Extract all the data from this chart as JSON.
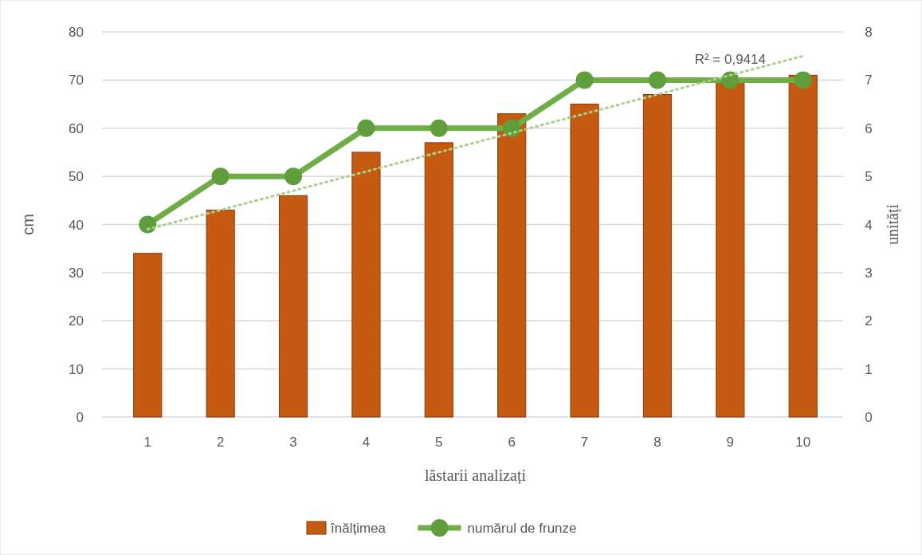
{
  "chart_data": {
    "type": "bar",
    "xlabel": "lăstarii analizați",
    "ylabel": "cm",
    "y2label": "unități",
    "categories": [
      "1",
      "2",
      "3",
      "4",
      "5",
      "6",
      "7",
      "8",
      "9",
      "10"
    ],
    "series": [
      {
        "name": "înălțimea",
        "color": "#c55a11",
        "values": [
          34,
          43,
          46,
          55,
          57,
          63,
          65,
          67,
          70,
          71
        ]
      },
      {
        "name": "numărul de frunze",
        "type": "line",
        "axis": "y2",
        "color": "#70ad47",
        "marker": "circle",
        "values": [
          4,
          5,
          5,
          6,
          6,
          6,
          7,
          7,
          7,
          7
        ]
      },
      {
        "type": "line",
        "axis": "y2",
        "color": "#a9d18e",
        "line_style": "dotted",
        "x": [
          "1",
          "10"
        ],
        "values": [
          3.9,
          7.5
        ]
      }
    ],
    "ylim": [
      0,
      80
    ],
    "yticks": [
      0,
      10,
      20,
      30,
      40,
      50,
      60,
      70,
      80
    ],
    "y2lim": [
      0,
      8
    ],
    "y2ticks": [
      0,
      1,
      2,
      3,
      4,
      5,
      6,
      7,
      8
    ],
    "grid": "y",
    "legend": "bottom",
    "annotations": [
      "R² = 0,9414"
    ]
  }
}
